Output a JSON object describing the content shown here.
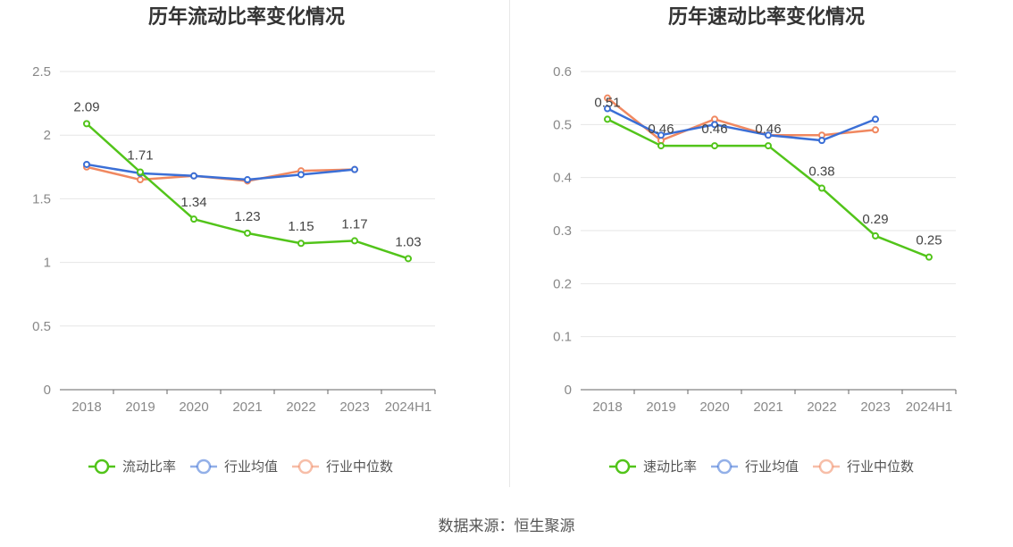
{
  "source_label": "数据来源：恒生聚源",
  "chart_data": [
    {
      "type": "line",
      "title": "历年流动比率变化情况",
      "categories": [
        "2018",
        "2019",
        "2020",
        "2021",
        "2022",
        "2023",
        "2024H1"
      ],
      "ylim": [
        0,
        2.5
      ],
      "yticks": [
        "0",
        "0.5",
        "1",
        "1.5",
        "2",
        "2.5"
      ],
      "grid": true,
      "legend_position": "bottom-center",
      "series": [
        {
          "name": "流动比率",
          "color": "#52c41a",
          "labeled": true,
          "values": [
            2.09,
            1.71,
            1.34,
            1.23,
            1.15,
            1.17,
            1.03
          ],
          "labels": [
            "2.09",
            "1.71",
            "1.34",
            "1.23",
            "1.15",
            "1.17",
            "1.03"
          ]
        },
        {
          "name": "行业均值",
          "color": "#3b6fd6",
          "labeled": false,
          "values": [
            1.77,
            1.7,
            1.68,
            1.65,
            1.69,
            1.73,
            null
          ]
        },
        {
          "name": "行业中位数",
          "color": "#f08860",
          "labeled": false,
          "values": [
            1.75,
            1.65,
            1.68,
            1.64,
            1.72,
            1.73,
            null
          ]
        }
      ]
    },
    {
      "type": "line",
      "title": "历年速动比率变化情况",
      "categories": [
        "2018",
        "2019",
        "2020",
        "2021",
        "2022",
        "2023",
        "2024H1"
      ],
      "ylim": [
        0,
        0.6
      ],
      "yticks": [
        "0",
        "0.1",
        "0.2",
        "0.3",
        "0.4",
        "0.5",
        "0.6"
      ],
      "grid": true,
      "legend_position": "bottom-center",
      "series": [
        {
          "name": "速动比率",
          "color": "#52c41a",
          "labeled": true,
          "values": [
            0.51,
            0.46,
            0.46,
            0.46,
            0.38,
            0.29,
            0.25
          ],
          "labels": [
            "0.51",
            "0.46",
            "0.46",
            "0.46",
            "0.38",
            "0.29",
            "0.25"
          ]
        },
        {
          "name": "行业均值",
          "color": "#3b6fd6",
          "labeled": false,
          "values": [
            0.53,
            0.48,
            0.5,
            0.48,
            0.47,
            0.51,
            null
          ]
        },
        {
          "name": "行业中位数",
          "color": "#f08860",
          "labeled": false,
          "values": [
            0.55,
            0.47,
            0.51,
            0.48,
            0.48,
            0.49,
            null
          ]
        }
      ]
    }
  ]
}
